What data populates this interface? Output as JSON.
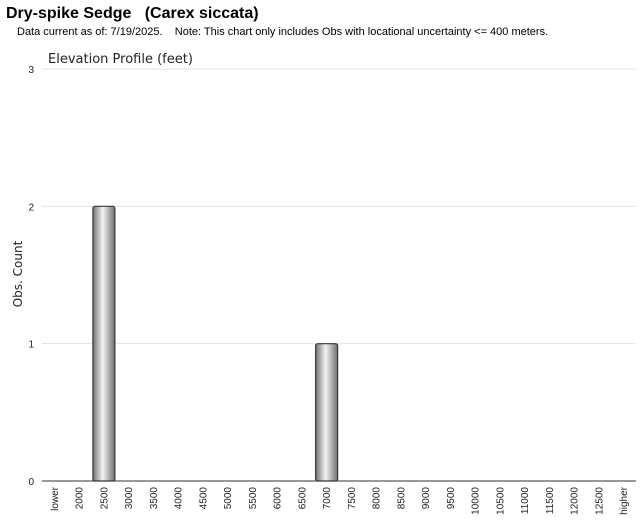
{
  "header": {
    "title": "Dry-spike Sedge   (Carex siccata)",
    "subtitle": "Data current as of: 7/19/2025.    Note: This chart only includes Obs with locational uncertainty <= 400 meters."
  },
  "chart_data": {
    "type": "bar",
    "title": "Elevation Profile (feet)",
    "xlabel": "",
    "ylabel": "Obs. Count",
    "categories": [
      "lower",
      "2000",
      "2500",
      "3000",
      "3500",
      "4000",
      "4500",
      "5000",
      "5500",
      "6000",
      "6500",
      "7000",
      "7500",
      "8000",
      "8500",
      "9000",
      "9500",
      "10000",
      "10500",
      "11000",
      "11500",
      "12000",
      "12500",
      "higher"
    ],
    "values": [
      0,
      0,
      2,
      0,
      0,
      0,
      0,
      0,
      0,
      0,
      0,
      1,
      0,
      0,
      0,
      0,
      0,
      0,
      0,
      0,
      0,
      0,
      0,
      0
    ],
    "ylim": [
      0,
      3
    ],
    "yticks": [
      0,
      1,
      2,
      3
    ],
    "grid": true,
    "legend": "none",
    "colors": {
      "bar_edge": "#3a3a3a",
      "bar_dark": "#6e6e6e",
      "bar_light": "#f4f4f4",
      "grid": "#e3e3e3",
      "axis": "#333333"
    }
  }
}
